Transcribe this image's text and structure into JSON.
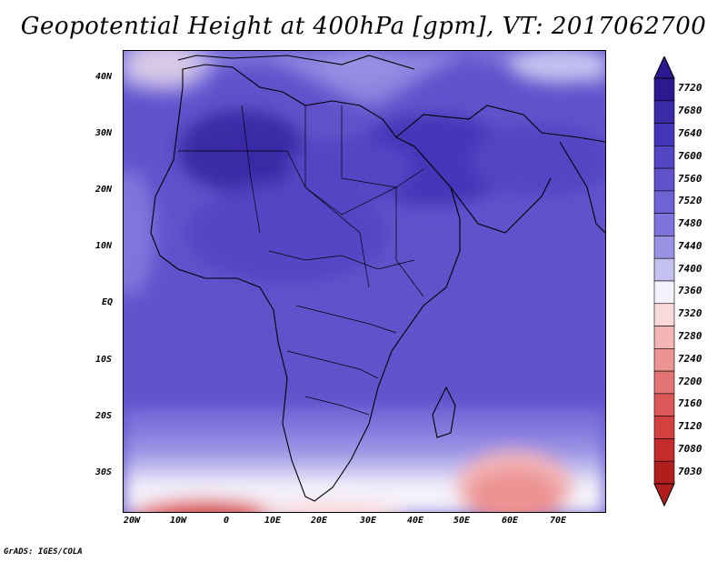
{
  "title": "Geopotential Height at 400hPa [gpm], VT: 2017062700",
  "footer": "GrADS: IGES/COLA",
  "map": {
    "region": "Africa and Middle East",
    "variable": "Geopotential Height",
    "level": "400hPa",
    "units": "gpm",
    "valid_time": "2017062700"
  },
  "axes": {
    "lon_ticks": [
      "20W",
      "10W",
      "0",
      "10E",
      "20E",
      "30E",
      "40E",
      "50E",
      "60E",
      "70E"
    ],
    "lat_ticks": [
      "40N",
      "30N",
      "20N",
      "10N",
      "EQ",
      "10S",
      "20S",
      "30S"
    ]
  },
  "colorbar": {
    "labels": [
      "7720",
      "7680",
      "7640",
      "7600",
      "7560",
      "7520",
      "7480",
      "7440",
      "7400",
      "7360",
      "7320",
      "7280",
      "7240",
      "7200",
      "7160",
      "7120",
      "7080",
      "7030"
    ],
    "colors": [
      "#2b1a8f",
      "#3a2aa6",
      "#4535b8",
      "#5445c4",
      "#6152cc",
      "#6f62d4",
      "#8074dc",
      "#9a91e4",
      "#c4c0f0",
      "#f4f2fc",
      "#f9d9d9",
      "#f3b5b5",
      "#ec9393",
      "#e47373",
      "#dc5858",
      "#d24040",
      "#c42c2c",
      "#b01e1e"
    ]
  }
}
